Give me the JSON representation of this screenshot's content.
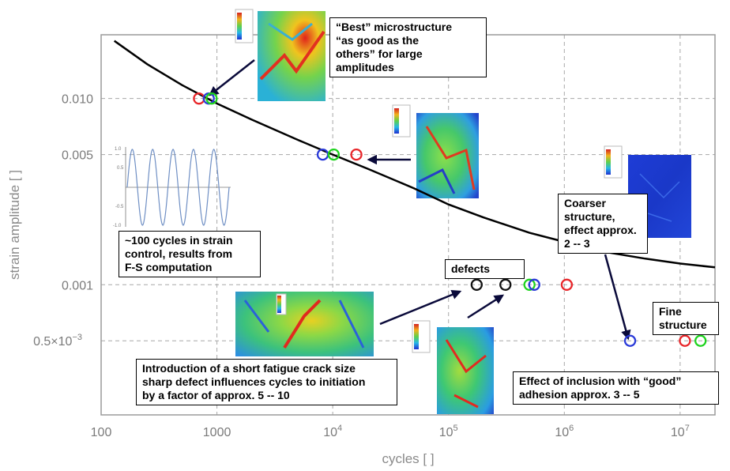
{
  "chart_data": {
    "type": "scatter",
    "xlabel": "cycles [ ]",
    "ylabel": "strain amplitude [ ]",
    "x_scale": "log",
    "y_scale": "log",
    "xlim": [
      100,
      20000000
    ],
    "ylim": [
      0.0002,
      0.022
    ],
    "grid": true,
    "x_ticks": [
      {
        "value": 100,
        "label": "100"
      },
      {
        "value": 1000,
        "label": "1000"
      },
      {
        "value": 10000,
        "label": "10",
        "exp": "4"
      },
      {
        "value": 100000,
        "label": "10",
        "exp": "5"
      },
      {
        "value": 1000000,
        "label": "10",
        "exp": "6"
      },
      {
        "value": 10000000,
        "label": "10",
        "exp": "7"
      }
    ],
    "y_ticks": [
      {
        "value": 0.01,
        "label": "0.010"
      },
      {
        "value": 0.005,
        "label": "0.005"
      },
      {
        "value": 0.001,
        "label": "0.001"
      },
      {
        "value": 0.0005,
        "label": "0.5×10",
        "exp": "−3"
      }
    ],
    "curve": {
      "color": "#000000",
      "x": [
        130,
        250,
        500,
        1000,
        2000,
        5000,
        10000,
        20000,
        50000,
        100000,
        200000,
        500000,
        1000000,
        2000000,
        5000000,
        10000000,
        20000000
      ],
      "y": [
        0.0204,
        0.0153,
        0.0118,
        0.0094,
        0.0077,
        0.006,
        0.005,
        0.0042,
        0.0033,
        0.0027,
        0.0023,
        0.0019,
        0.0017,
        0.00152,
        0.00138,
        0.0013,
        0.00124
      ]
    },
    "points": [
      {
        "x": 700,
        "y": 0.01,
        "color": "#e8262a"
      },
      {
        "x": 850,
        "y": 0.01,
        "color": "#2a3ad8"
      },
      {
        "x": 900,
        "y": 0.01,
        "color": "#1ed31e"
      },
      {
        "x": 8200,
        "y": 0.005,
        "color": "#2a3ad8"
      },
      {
        "x": 10200,
        "y": 0.005,
        "color": "#1ed31e"
      },
      {
        "x": 16000,
        "y": 0.005,
        "color": "#e8262a"
      },
      {
        "x": 175000,
        "y": 0.001,
        "color": "#111111"
      },
      {
        "x": 310000,
        "y": 0.001,
        "color": "#111111"
      },
      {
        "x": 500000,
        "y": 0.001,
        "color": "#1ed31e"
      },
      {
        "x": 550000,
        "y": 0.001,
        "color": "#2a3ad8"
      },
      {
        "x": 1050000,
        "y": 0.001,
        "color": "#e8262a"
      },
      {
        "x": 3700000,
        "y": 0.0005,
        "color": "#2a3ad8"
      },
      {
        "x": 11000000,
        "y": 0.0005,
        "color": "#e8262a"
      },
      {
        "x": 15000000,
        "y": 0.0005,
        "color": "#1ed31e"
      }
    ],
    "annotations": [
      {
        "text": "“Best” microstructure\n“as good as the\nothers” for large\namplitudes"
      },
      {
        "text": "~100 cycles in strain\ncontrol, results from\nF-S computation"
      },
      {
        "text": "defects"
      },
      {
        "text": "Coarser\nstructure,\neffect approx.\n2 -- 3"
      },
      {
        "text": "Fine\nstructure"
      },
      {
        "text": "Introduction of a short fatigue crack size\nsharp defect influences cycles to initiation\nby a factor of approx. 5 -- 10"
      },
      {
        "text": "Effect of inclusion with “good”\nadhesion approx. 3 -- 5"
      }
    ],
    "inset": {
      "type": "line",
      "y_ticks": [
        "1.0",
        "0.5",
        "-0.5",
        "-1.0"
      ],
      "color": "#6f8fc4"
    }
  }
}
